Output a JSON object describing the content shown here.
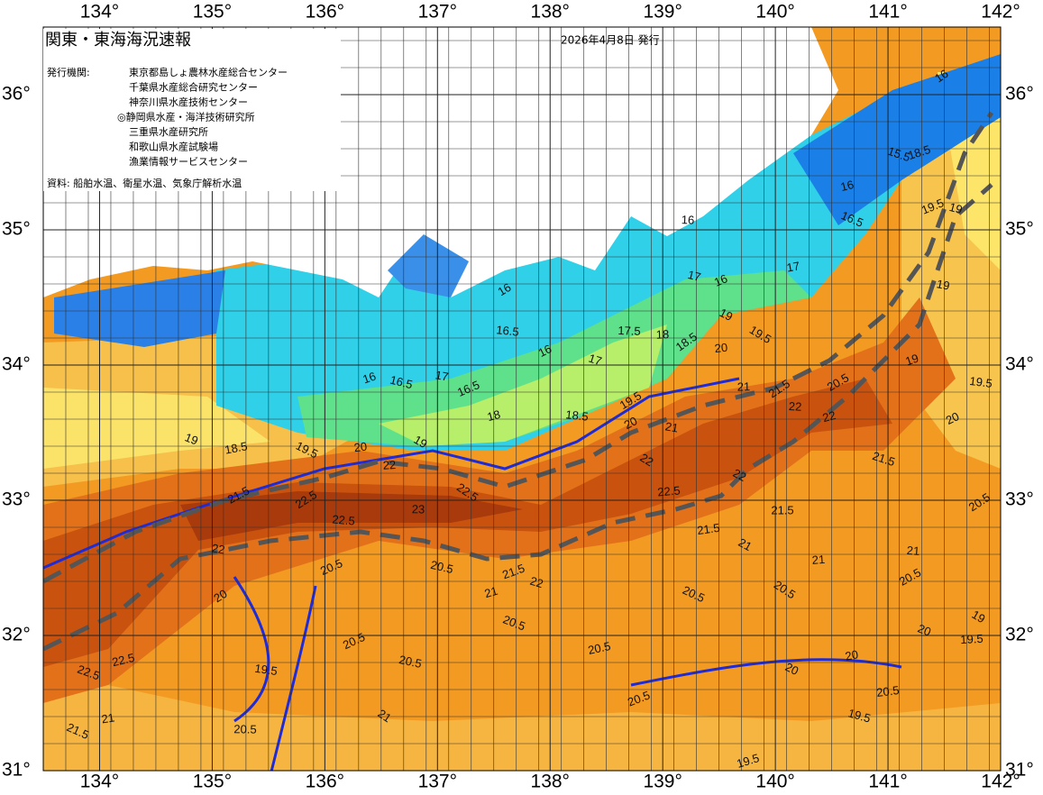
{
  "header": {
    "title": "関東・東海海況速報",
    "issued": "2026年4月8日 発行"
  },
  "issuers": {
    "label": "発行機関:",
    "items": [
      "東京都島しょ農林水産総合センター",
      "千葉県水産総合研究センター",
      "神奈川県水産技術センター",
      "◎静岡県水産・海洋技術研究所",
      "三重県水産研究所",
      "和歌山県水産試験場",
      "漁業情報サービスセンター"
    ]
  },
  "source": "資料: 船舶水温、衛星水温、気象庁解析水温",
  "map": {
    "xlim": [
      133.5,
      142
    ],
    "ylim": [
      31,
      36.5
    ],
    "xticks": [
      {
        "value": 134,
        "label": "134°"
      },
      {
        "value": 135,
        "label": "135°"
      },
      {
        "value": 136,
        "label": "136°"
      },
      {
        "value": 137,
        "label": "137°"
      },
      {
        "value": 138,
        "label": "138°"
      },
      {
        "value": 139,
        "label": "139°"
      },
      {
        "value": 140,
        "label": "140°"
      },
      {
        "value": 141,
        "label": "141°"
      },
      {
        "value": 142,
        "label": "142°"
      }
    ],
    "yticks": [
      {
        "value": 31,
        "label": "31°"
      },
      {
        "value": 32,
        "label": "32°"
      },
      {
        "value": 33,
        "label": "33°"
      },
      {
        "value": 34,
        "label": "34°"
      },
      {
        "value": 35,
        "label": "35°"
      },
      {
        "value": 36,
        "label": "36°"
      }
    ]
  },
  "contour_labels": [
    "16",
    "16",
    "16",
    "16.5",
    "16",
    "17",
    "16.5",
    "16.5",
    "16",
    "17",
    "18",
    "19",
    "18.5",
    "19.5",
    "20",
    "19",
    "22",
    "22.5",
    "23",
    "22.5",
    "22.5",
    "21.5",
    "22",
    "20.5",
    "20.5",
    "21.5",
    "22",
    "21",
    "20.5",
    "20.5",
    "20.5",
    "21.5",
    "21",
    "21",
    "20.5",
    "21.5",
    "20.5",
    "21",
    "20.5",
    "19.5",
    "20.5",
    "20.5",
    "20.5",
    "19.5",
    "19.5",
    "22.5",
    "22.5",
    "21.5",
    "21",
    "22",
    "22.5",
    "22",
    "21",
    "21.5",
    "22",
    "20.5",
    "19.5",
    "20",
    "19",
    "19.5",
    "19",
    "18.5",
    "15.5",
    "16",
    "16.5",
    "17",
    "19",
    "20",
    "19.5",
    "18",
    "18.5",
    "17.5",
    "19.5",
    "18.5",
    "20",
    "21",
    "16",
    "17",
    "19",
    "21.5",
    "22",
    "20",
    "20",
    "20",
    "20.5",
    "19",
    "19.5",
    "21",
    "20.5",
    "20"
  ]
}
